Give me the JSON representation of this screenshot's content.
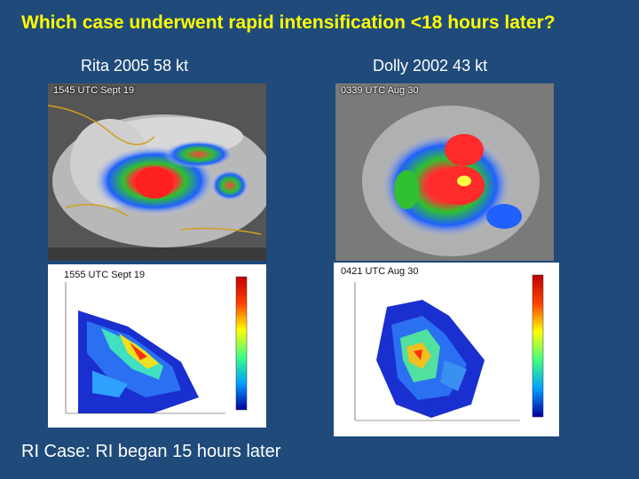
{
  "title": "Which case underwent rapid intensification <18 hours later?",
  "cases": [
    {
      "label": "Rita 2005  58 kt",
      "ir_time": "1545 UTC Sept 19",
      "radar_time": "1555 UTC Sept 19"
    },
    {
      "label": "Dolly 2002  43 kt",
      "ir_time": "0339 UTC Aug 30",
      "radar_time": "0421 UTC Aug 30"
    }
  ],
  "footer": "RI Case: RI began 15 hours later"
}
